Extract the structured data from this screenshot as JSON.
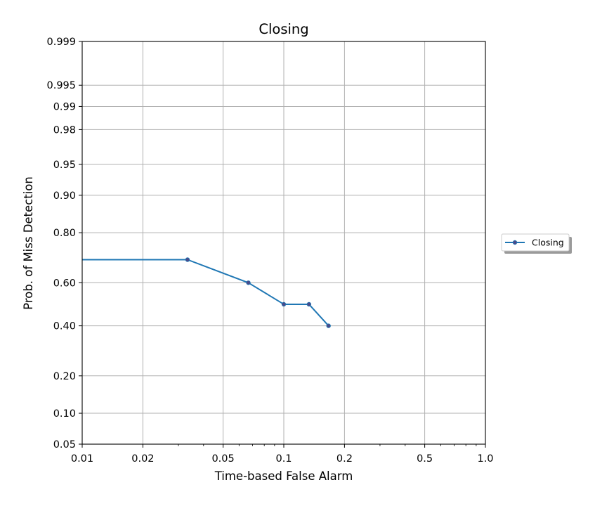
{
  "chart_data": {
    "type": "line",
    "title": "Closing",
    "xlabel": "Time-based False Alarm",
    "ylabel": "Prob. of Miss Detection",
    "xscale": "log",
    "yscale": "normal-probability",
    "xlim": [
      0.01,
      1.0
    ],
    "ylim": [
      0.05,
      0.999
    ],
    "grid": true,
    "legend_position": "outside-right",
    "xticks": [
      0.01,
      0.02,
      0.05,
      0.1,
      0.2,
      0.5,
      1.0
    ],
    "xtick_labels": [
      "0.01",
      "0.02",
      "0.05",
      "0.1",
      "0.2",
      "0.5",
      "1.0"
    ],
    "yticks": [
      0.05,
      0.1,
      0.2,
      0.4,
      0.6,
      0.8,
      0.9,
      0.95,
      0.98,
      0.99,
      0.995,
      0.999
    ],
    "ytick_labels": [
      "0.05",
      "0.10",
      "0.20",
      "0.40",
      "0.60",
      "0.80",
      "0.90",
      "0.95",
      "0.98",
      "0.99",
      "0.995",
      "0.999"
    ],
    "series": [
      {
        "name": "Closing",
        "color": "#1f77b4",
        "marker_color": "#4a4a8a",
        "x": [
          0.01,
          0.0333,
          0.0667,
          0.1,
          0.1333,
          0.1667
        ],
        "y": [
          0.7,
          0.7,
          0.6,
          0.5,
          0.5,
          0.4
        ],
        "markers": [
          false,
          true,
          true,
          true,
          true,
          true
        ]
      }
    ]
  }
}
